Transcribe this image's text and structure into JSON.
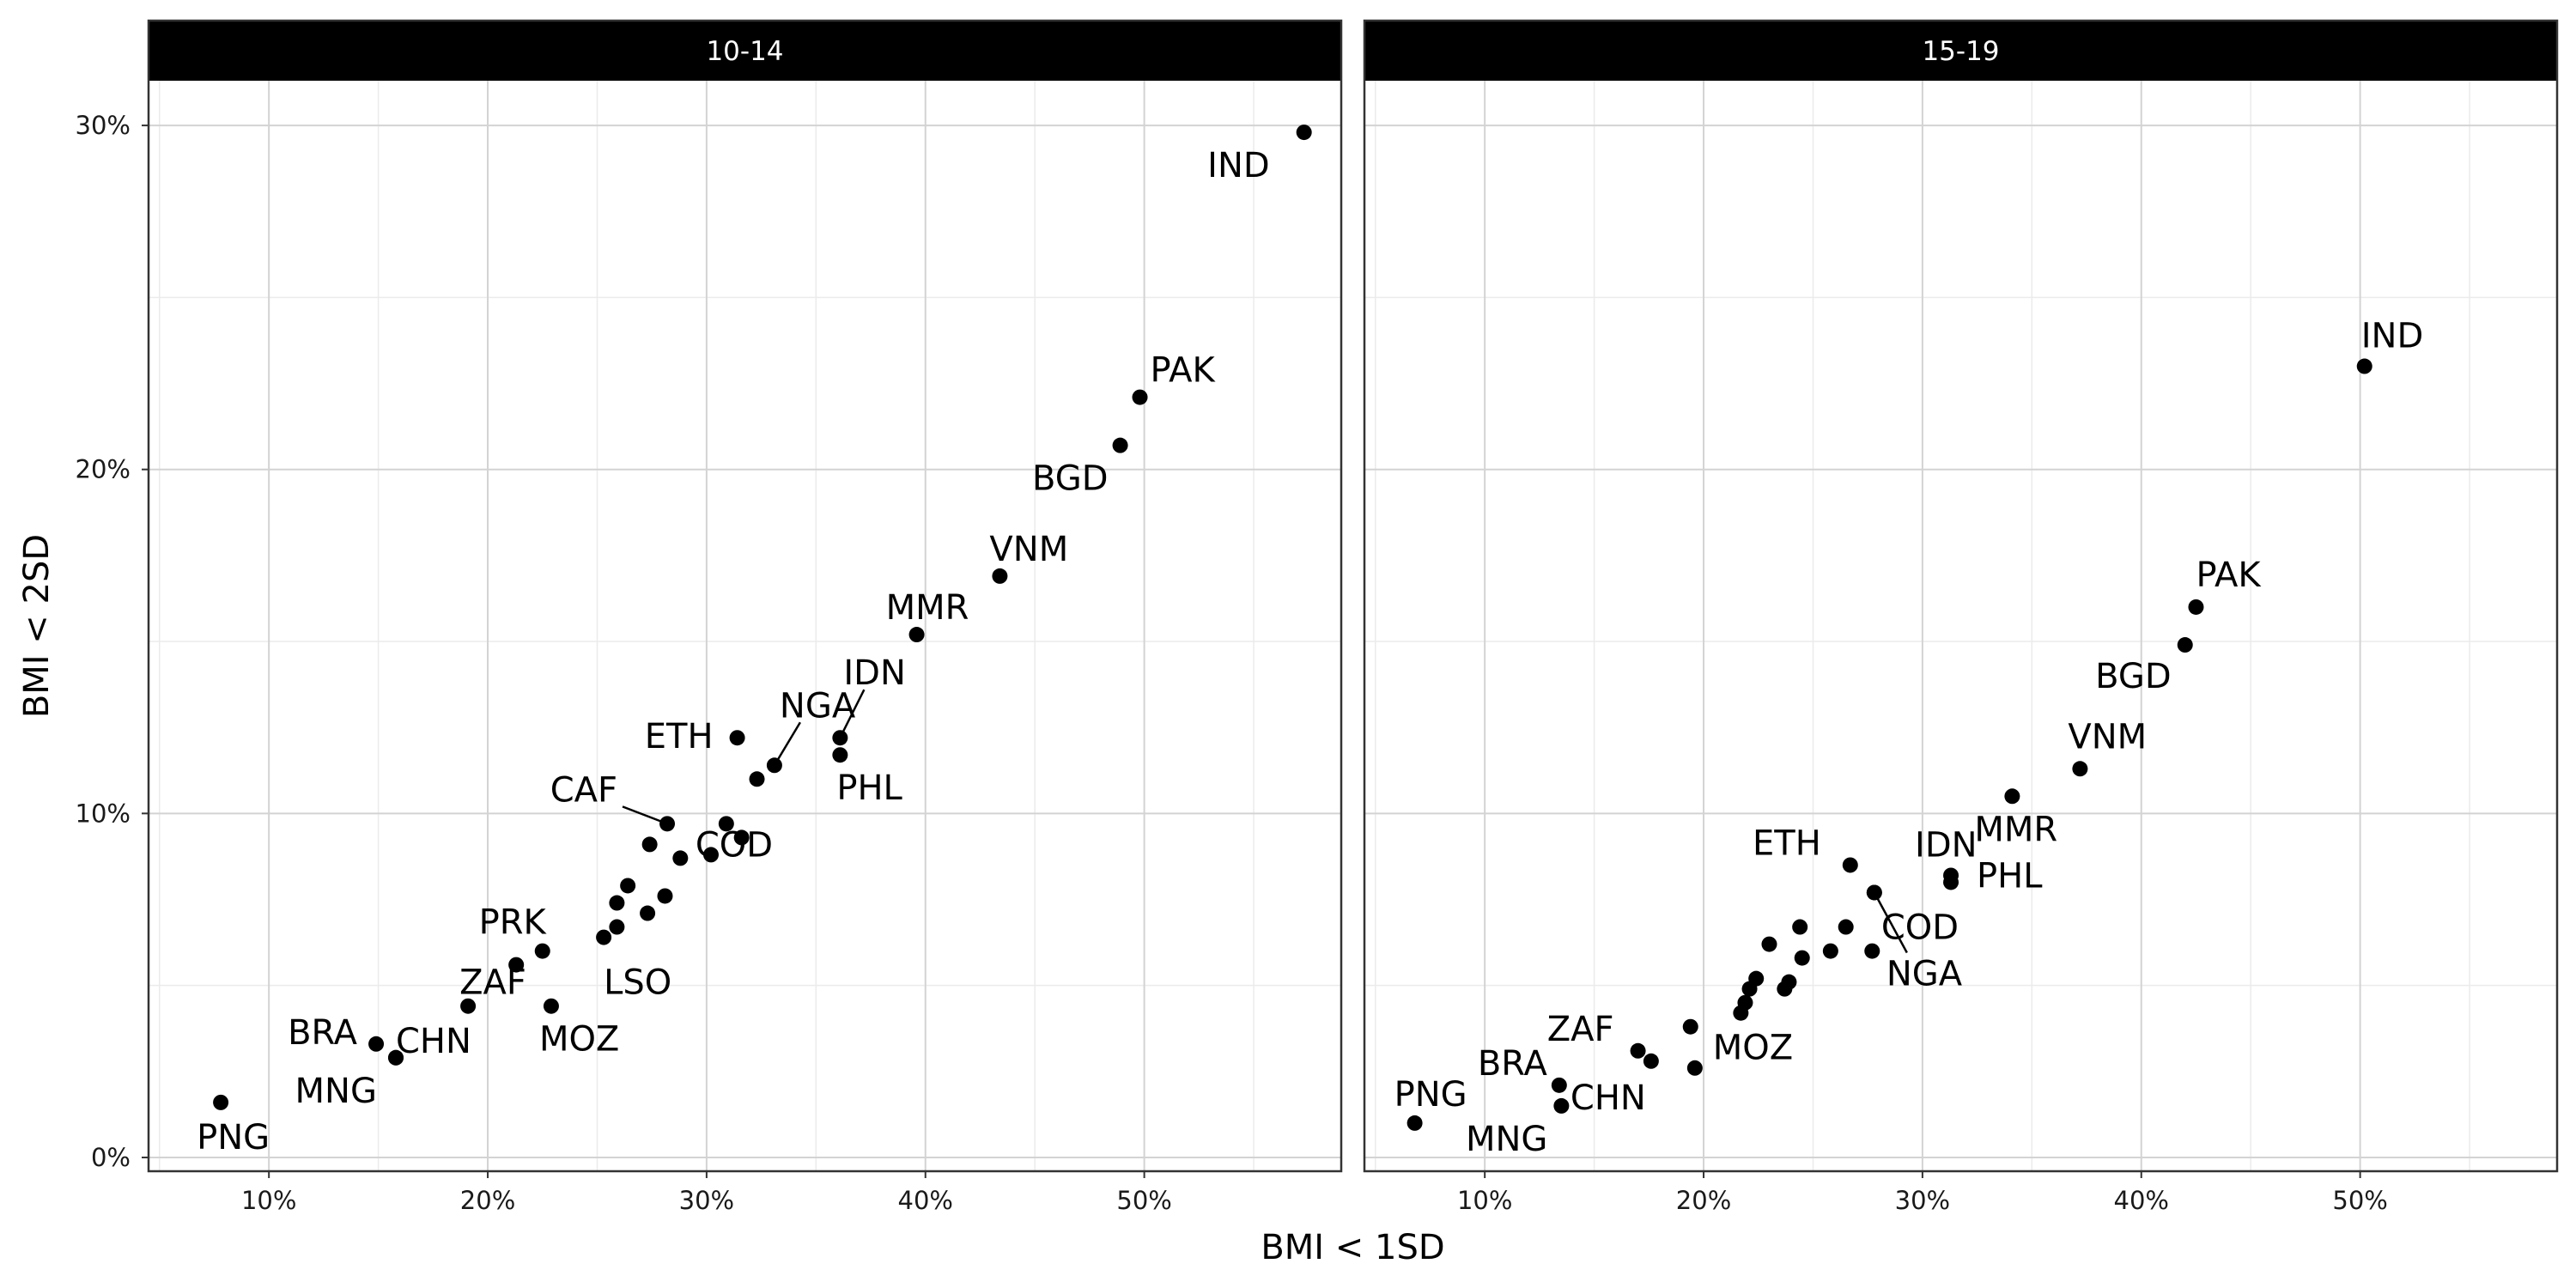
{
  "chart_data": {
    "type": "scatter",
    "xlabel": "BMI < 1SD",
    "ylabel": "BMI < 2SD",
    "x_ticks": [
      "10%",
      "20%",
      "30%",
      "40%",
      "50%"
    ],
    "y_ticks": [
      "0%",
      "10%",
      "20%",
      "30%"
    ],
    "xlim": [
      0.045,
      0.59
    ],
    "ylim": [
      -0.004,
      0.313
    ],
    "grid": true,
    "facets": [
      {
        "title": "10-14",
        "points": [
          {
            "label": "IND",
            "x": 0.573,
            "y": 0.298
          },
          {
            "label": "PAK",
            "x": 0.498,
            "y": 0.221
          },
          {
            "label": "BGD",
            "x": 0.489,
            "y": 0.207
          },
          {
            "label": "VNM",
            "x": 0.434,
            "y": 0.169
          },
          {
            "label": "MMR",
            "x": 0.396,
            "y": 0.152
          },
          {
            "label": "IDN",
            "x": 0.361,
            "y": 0.122
          },
          {
            "label": "PHL",
            "x": 0.361,
            "y": 0.117
          },
          {
            "label": "ETH",
            "x": 0.314,
            "y": 0.122
          },
          {
            "label": "NGA",
            "x": 0.331,
            "y": 0.114
          },
          {
            "label": "",
            "x": 0.323,
            "y": 0.11
          },
          {
            "label": "COD",
            "x": 0.309,
            "y": 0.097
          },
          {
            "label": "CAF",
            "x": 0.282,
            "y": 0.097
          },
          {
            "label": "",
            "x": 0.316,
            "y": 0.093
          },
          {
            "label": "",
            "x": 0.274,
            "y": 0.091
          },
          {
            "label": "",
            "x": 0.302,
            "y": 0.088
          },
          {
            "label": "",
            "x": 0.288,
            "y": 0.087
          },
          {
            "label": "",
            "x": 0.264,
            "y": 0.079
          },
          {
            "label": "",
            "x": 0.281,
            "y": 0.076
          },
          {
            "label": "",
            "x": 0.259,
            "y": 0.074
          },
          {
            "label": "",
            "x": 0.273,
            "y": 0.071
          },
          {
            "label": "",
            "x": 0.259,
            "y": 0.067
          },
          {
            "label": "LSO",
            "x": 0.253,
            "y": 0.064
          },
          {
            "label": "PRK",
            "x": 0.225,
            "y": 0.06
          },
          {
            "label": "",
            "x": 0.213,
            "y": 0.056
          },
          {
            "label": "ZAF",
            "x": 0.191,
            "y": 0.044
          },
          {
            "label": "MOZ",
            "x": 0.229,
            "y": 0.044
          },
          {
            "label": "BRA",
            "x": 0.149,
            "y": 0.033
          },
          {
            "label": "CHN",
            "x": 0.158,
            "y": 0.029
          },
          {
            "label": "MNG",
            "x": 0.158,
            "y": 0.029
          },
          {
            "label": "PNG",
            "x": 0.078,
            "y": 0.016
          }
        ]
      },
      {
        "title": "15-19",
        "points": [
          {
            "label": "IND",
            "x": 0.502,
            "y": 0.23
          },
          {
            "label": "PAK",
            "x": 0.425,
            "y": 0.16
          },
          {
            "label": "BGD",
            "x": 0.42,
            "y": 0.149
          },
          {
            "label": "VNM",
            "x": 0.372,
            "y": 0.113
          },
          {
            "label": "MMR",
            "x": 0.341,
            "y": 0.105
          },
          {
            "label": "IDN",
            "x": 0.313,
            "y": 0.082
          },
          {
            "label": "PHL",
            "x": 0.313,
            "y": 0.08
          },
          {
            "label": "ETH",
            "x": 0.267,
            "y": 0.085
          },
          {
            "label": "COD",
            "x": 0.278,
            "y": 0.077
          },
          {
            "label": "NGA",
            "x": 0.278,
            "y": 0.077
          },
          {
            "label": "",
            "x": 0.265,
            "y": 0.067
          },
          {
            "label": "",
            "x": 0.244,
            "y": 0.067
          },
          {
            "label": "",
            "x": 0.23,
            "y": 0.062
          },
          {
            "label": "",
            "x": 0.258,
            "y": 0.06
          },
          {
            "label": "",
            "x": 0.277,
            "y": 0.06
          },
          {
            "label": "",
            "x": 0.245,
            "y": 0.058
          },
          {
            "label": "",
            "x": 0.224,
            "y": 0.052
          },
          {
            "label": "",
            "x": 0.239,
            "y": 0.051
          },
          {
            "label": "",
            "x": 0.221,
            "y": 0.049
          },
          {
            "label": "",
            "x": 0.237,
            "y": 0.049
          },
          {
            "label": "",
            "x": 0.219,
            "y": 0.045
          },
          {
            "label": "",
            "x": 0.217,
            "y": 0.042
          },
          {
            "label": "MOZ",
            "x": 0.194,
            "y": 0.038
          },
          {
            "label": "ZAF",
            "x": 0.17,
            "y": 0.031
          },
          {
            "label": "CHN",
            "x": 0.176,
            "y": 0.028
          },
          {
            "label": "",
            "x": 0.196,
            "y": 0.026
          },
          {
            "label": "BRA",
            "x": 0.134,
            "y": 0.021
          },
          {
            "label": "MNG",
            "x": 0.135,
            "y": 0.015
          },
          {
            "label": "PNG",
            "x": 0.068,
            "y": 0.01
          }
        ]
      }
    ]
  }
}
